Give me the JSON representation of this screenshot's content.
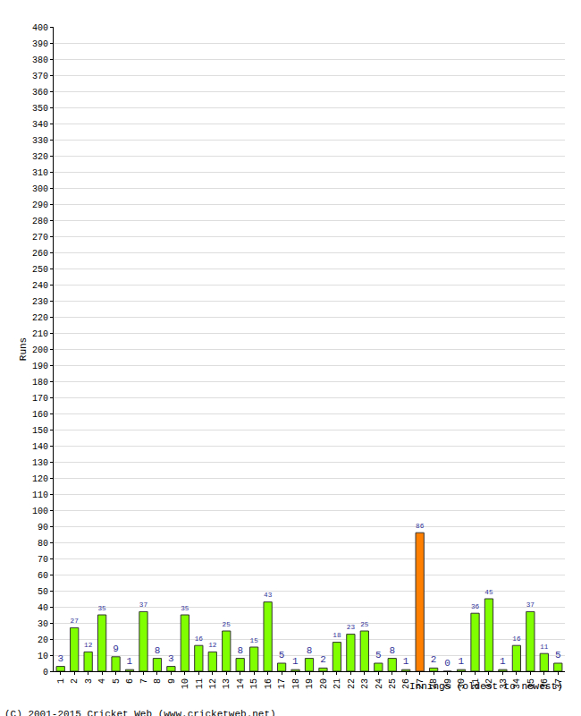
{
  "chart_data": {
    "type": "bar",
    "x_label": "Innings (oldest to newest)",
    "y_label": "Runs",
    "annotations": [
      "(C) 2001-2015 Cricket Web (www.cricketweb.net)"
    ],
    "categories": [
      "1",
      "2",
      "3",
      "4",
      "5",
      "6",
      "7",
      "8",
      "9",
      "10",
      "11",
      "12",
      "13",
      "14",
      "15",
      "16",
      "17",
      "18",
      "19",
      "20",
      "21",
      "22",
      "23",
      "24",
      "25",
      "26",
      "27",
      "28",
      "29",
      "30",
      "31",
      "32",
      "33",
      "34",
      "35",
      "36",
      "37"
    ],
    "values": [
      3,
      27,
      12,
      35,
      9,
      1,
      37,
      8,
      3,
      35,
      16,
      12,
      25,
      8,
      15,
      43,
      5,
      1,
      8,
      2,
      18,
      23,
      25,
      5,
      8,
      1,
      86,
      2,
      0,
      1,
      36,
      45,
      1,
      16,
      37,
      11,
      5
    ],
    "colors": [
      "#80ff00",
      "#80ff00",
      "#80ff00",
      "#80ff00",
      "#80ff00",
      "#80ff00",
      "#80ff00",
      "#80ff00",
      "#80ff00",
      "#80ff00",
      "#80ff00",
      "#80ff00",
      "#80ff00",
      "#80ff00",
      "#80ff00",
      "#80ff00",
      "#80ff00",
      "#80ff00",
      "#80ff00",
      "#80ff00",
      "#80ff00",
      "#80ff00",
      "#80ff00",
      "#80ff00",
      "#80ff00",
      "#80ff00",
      "#ff8000",
      "#80ff00",
      "#80ff00",
      "#80ff00",
      "#80ff00",
      "#80ff00",
      "#80ff00",
      "#80ff00",
      "#80ff00",
      "#80ff00",
      "#80ff00"
    ],
    "ylim": [
      0,
      400
    ],
    "yticks": [
      0,
      10,
      20,
      30,
      40,
      50,
      60,
      70,
      80,
      90,
      100,
      110,
      120,
      130,
      140,
      150,
      160,
      170,
      180,
      190,
      200,
      210,
      220,
      230,
      240,
      250,
      260,
      270,
      280,
      290,
      300,
      310,
      320,
      330,
      340,
      350,
      360,
      370,
      380,
      390,
      400
    ],
    "grid": true,
    "data_labels": true
  }
}
